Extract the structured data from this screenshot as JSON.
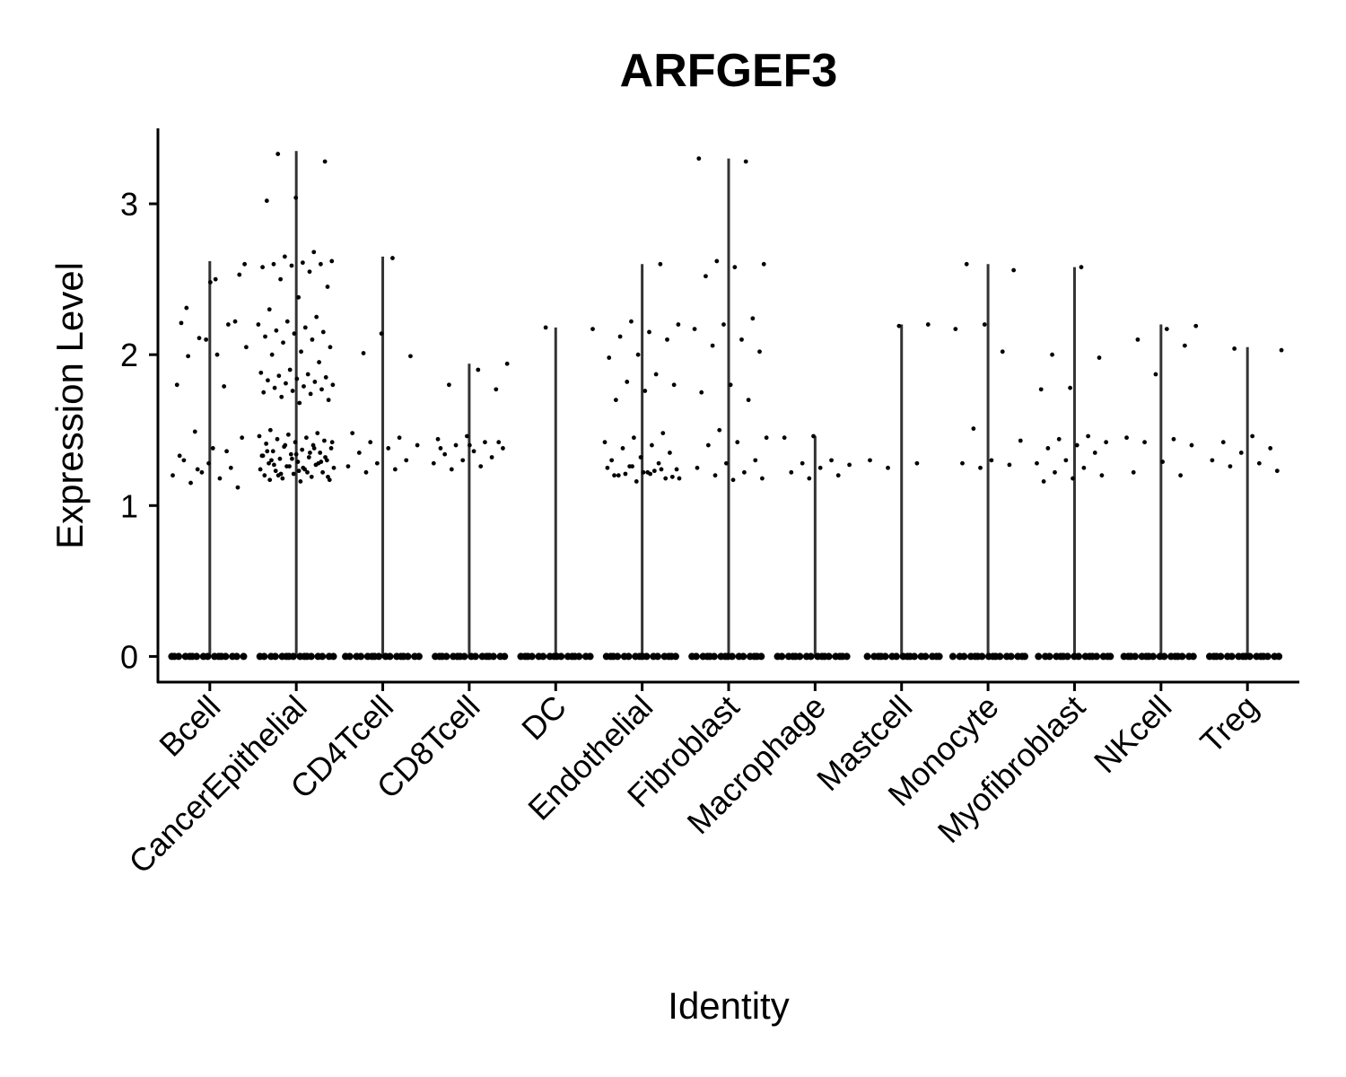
{
  "chart_data": {
    "type": "violin",
    "title": "ARFGEF3",
    "x_label": "Identity",
    "y_label": "Expression Level",
    "categories": [
      "Bcell",
      "CancerEpithelial",
      "CD4Tcell",
      "CD8Tcell",
      "DC",
      "Endothelial",
      "Fibroblast",
      "Macrophage",
      "Mastcell",
      "Monocyte",
      "Myofibroblast",
      "NKcell",
      "Treg"
    ],
    "violin_max": [
      2.62,
      3.35,
      2.65,
      1.94,
      2.18,
      2.6,
      3.3,
      1.46,
      2.2,
      2.6,
      2.58,
      2.2,
      2.05
    ],
    "points": [
      [
        0,
        0,
        0,
        0,
        0,
        0,
        0,
        0,
        0,
        0,
        0,
        0,
        0,
        0,
        0,
        0,
        2.53,
        2.48,
        2.21,
        2.2,
        2.11,
        2.05,
        2.0,
        1.99,
        2.22,
        2.1,
        1.8,
        1.79,
        1.49,
        1.45,
        1.38,
        1.3,
        1.25,
        1.22,
        1.2,
        1.18,
        1.15,
        1.12,
        1.28,
        1.33,
        1.36,
        1.24,
        2.6,
        2.5,
        2.31
      ],
      [
        0,
        0,
        0,
        0,
        0,
        0,
        0,
        0,
        0,
        0,
        0,
        0,
        0,
        0,
        0,
        0,
        3.33,
        3.28,
        3.04,
        3.02,
        2.68,
        2.65,
        2.62,
        2.61,
        2.6,
        2.6,
        2.59,
        2.58,
        2.55,
        2.5,
        2.45,
        2.38,
        2.3,
        2.25,
        2.22,
        2.2,
        2.18,
        2.16,
        2.15,
        2.14,
        2.12,
        2.1,
        2.08,
        2.05,
        2.02,
        2.0,
        1.95,
        1.9,
        1.88,
        1.87,
        1.86,
        1.85,
        1.84,
        1.83,
        1.82,
        1.81,
        1.8,
        1.79,
        1.78,
        1.77,
        1.76,
        1.75,
        1.74,
        1.72,
        1.7,
        1.68,
        1.5,
        1.48,
        1.47,
        1.46,
        1.45,
        1.44,
        1.43,
        1.42,
        1.41,
        1.4,
        1.39,
        1.38,
        1.37,
        1.36,
        1.35,
        1.34,
        1.33,
        1.32,
        1.31,
        1.3,
        1.29,
        1.28,
        1.27,
        1.26,
        1.25,
        1.24,
        1.23,
        1.22,
        1.21,
        1.2,
        1.19,
        1.18,
        1.17,
        1.16,
        1.3,
        1.28,
        1.26,
        1.24,
        1.22,
        1.2,
        1.32,
        1.34,
        1.36,
        1.38,
        1.4,
        1.42,
        1.25,
        1.27,
        1.29,
        1.31,
        1.33,
        1.35,
        1.21,
        1.19,
        1.23,
        1.17
      ],
      [
        0,
        0,
        0,
        0,
        0,
        0,
        0,
        0,
        0,
        0,
        0,
        0,
        0,
        0,
        0,
        0,
        2.64,
        2.01,
        1.99,
        2.14,
        1.48,
        1.45,
        1.42,
        1.4,
        1.38,
        1.35,
        1.3,
        1.28,
        1.26,
        1.24,
        1.22
      ],
      [
        0,
        0,
        0,
        0,
        0,
        0,
        0,
        0,
        0,
        0,
        0,
        0,
        0,
        0,
        0,
        0,
        1.94,
        1.9,
        1.8,
        1.77,
        1.46,
        1.44,
        1.42,
        1.4,
        1.38,
        1.36,
        1.34,
        1.32,
        1.3,
        1.28,
        1.26,
        1.24,
        1.42,
        1.4,
        1.38
      ],
      [
        0,
        0,
        0,
        0,
        0,
        0,
        0,
        0,
        0,
        0,
        0,
        0,
        0,
        0,
        0,
        0,
        2.18,
        2.17
      ],
      [
        0,
        0,
        0,
        0,
        0,
        0,
        0,
        0,
        0,
        0,
        0,
        0,
        0,
        0,
        0,
        0,
        2.6,
        2.22,
        2.2,
        2.15,
        2.12,
        2.1,
        2.0,
        1.98,
        1.87,
        1.82,
        1.8,
        1.76,
        1.7,
        1.48,
        1.45,
        1.42,
        1.4,
        1.38,
        1.35,
        1.32,
        1.3,
        1.28,
        1.26,
        1.24,
        1.22,
        1.2,
        1.18,
        1.16,
        1.25,
        1.23,
        1.21,
        1.19,
        1.22,
        1.2,
        1.24,
        1.26,
        1.18,
        1.21
      ],
      [
        0,
        0,
        0,
        0,
        0,
        0,
        0,
        0,
        0,
        0,
        0,
        0,
        0,
        0,
        0,
        0,
        3.3,
        3.28,
        2.62,
        2.6,
        2.58,
        2.52,
        2.24,
        2.2,
        2.17,
        2.1,
        2.06,
        2.02,
        1.8,
        1.75,
        1.7,
        1.5,
        1.45,
        1.42,
        1.4,
        1.3,
        1.28,
        1.25,
        1.22,
        1.2,
        1.18,
        1.17
      ],
      [
        0,
        0,
        0,
        0,
        0,
        0,
        0,
        0,
        0,
        0,
        0,
        0,
        0,
        0,
        0,
        0,
        1.46,
        1.45,
        1.3,
        1.28,
        1.27,
        1.25,
        1.22,
        1.2,
        1.18
      ],
      [
        0,
        0,
        0,
        0,
        0,
        0,
        0,
        0,
        0,
        0,
        0,
        0,
        0,
        0,
        0,
        0,
        2.2,
        2.19,
        1.3,
        1.28,
        1.25
      ],
      [
        0,
        0,
        0,
        0,
        0,
        0,
        0,
        0,
        0,
        0,
        0,
        0,
        0,
        0,
        0,
        0,
        2.6,
        2.56,
        2.2,
        2.17,
        2.02,
        1.51,
        1.43,
        1.3,
        1.28,
        1.27,
        1.25
      ],
      [
        0,
        0,
        0,
        0,
        0,
        0,
        0,
        0,
        0,
        0,
        0,
        0,
        0,
        0,
        0,
        0,
        2.58,
        2.0,
        1.98,
        1.78,
        1.77,
        1.46,
        1.44,
        1.42,
        1.4,
        1.38,
        1.35,
        1.3,
        1.28,
        1.25,
        1.22,
        1.2,
        1.18,
        1.16
      ],
      [
        0,
        0,
        0,
        0,
        0,
        0,
        0,
        0,
        0,
        0,
        0,
        0,
        0,
        0,
        0,
        0,
        2.19,
        2.17,
        2.1,
        2.06,
        1.87,
        1.45,
        1.44,
        1.42,
        1.4,
        1.29,
        1.22,
        1.2
      ],
      [
        0,
        0,
        0,
        0,
        0,
        0,
        0,
        0,
        0,
        0,
        0,
        0,
        0,
        0,
        0,
        0,
        2.04,
        2.03,
        1.46,
        1.42,
        1.38,
        1.35,
        1.3,
        1.28,
        1.26,
        1.23
      ]
    ],
    "ylim": [
      -0.17,
      3.5
    ],
    "yticks": [
      0,
      1,
      2,
      3
    ],
    "point_color": "#000000",
    "violin_color": "#333333"
  }
}
